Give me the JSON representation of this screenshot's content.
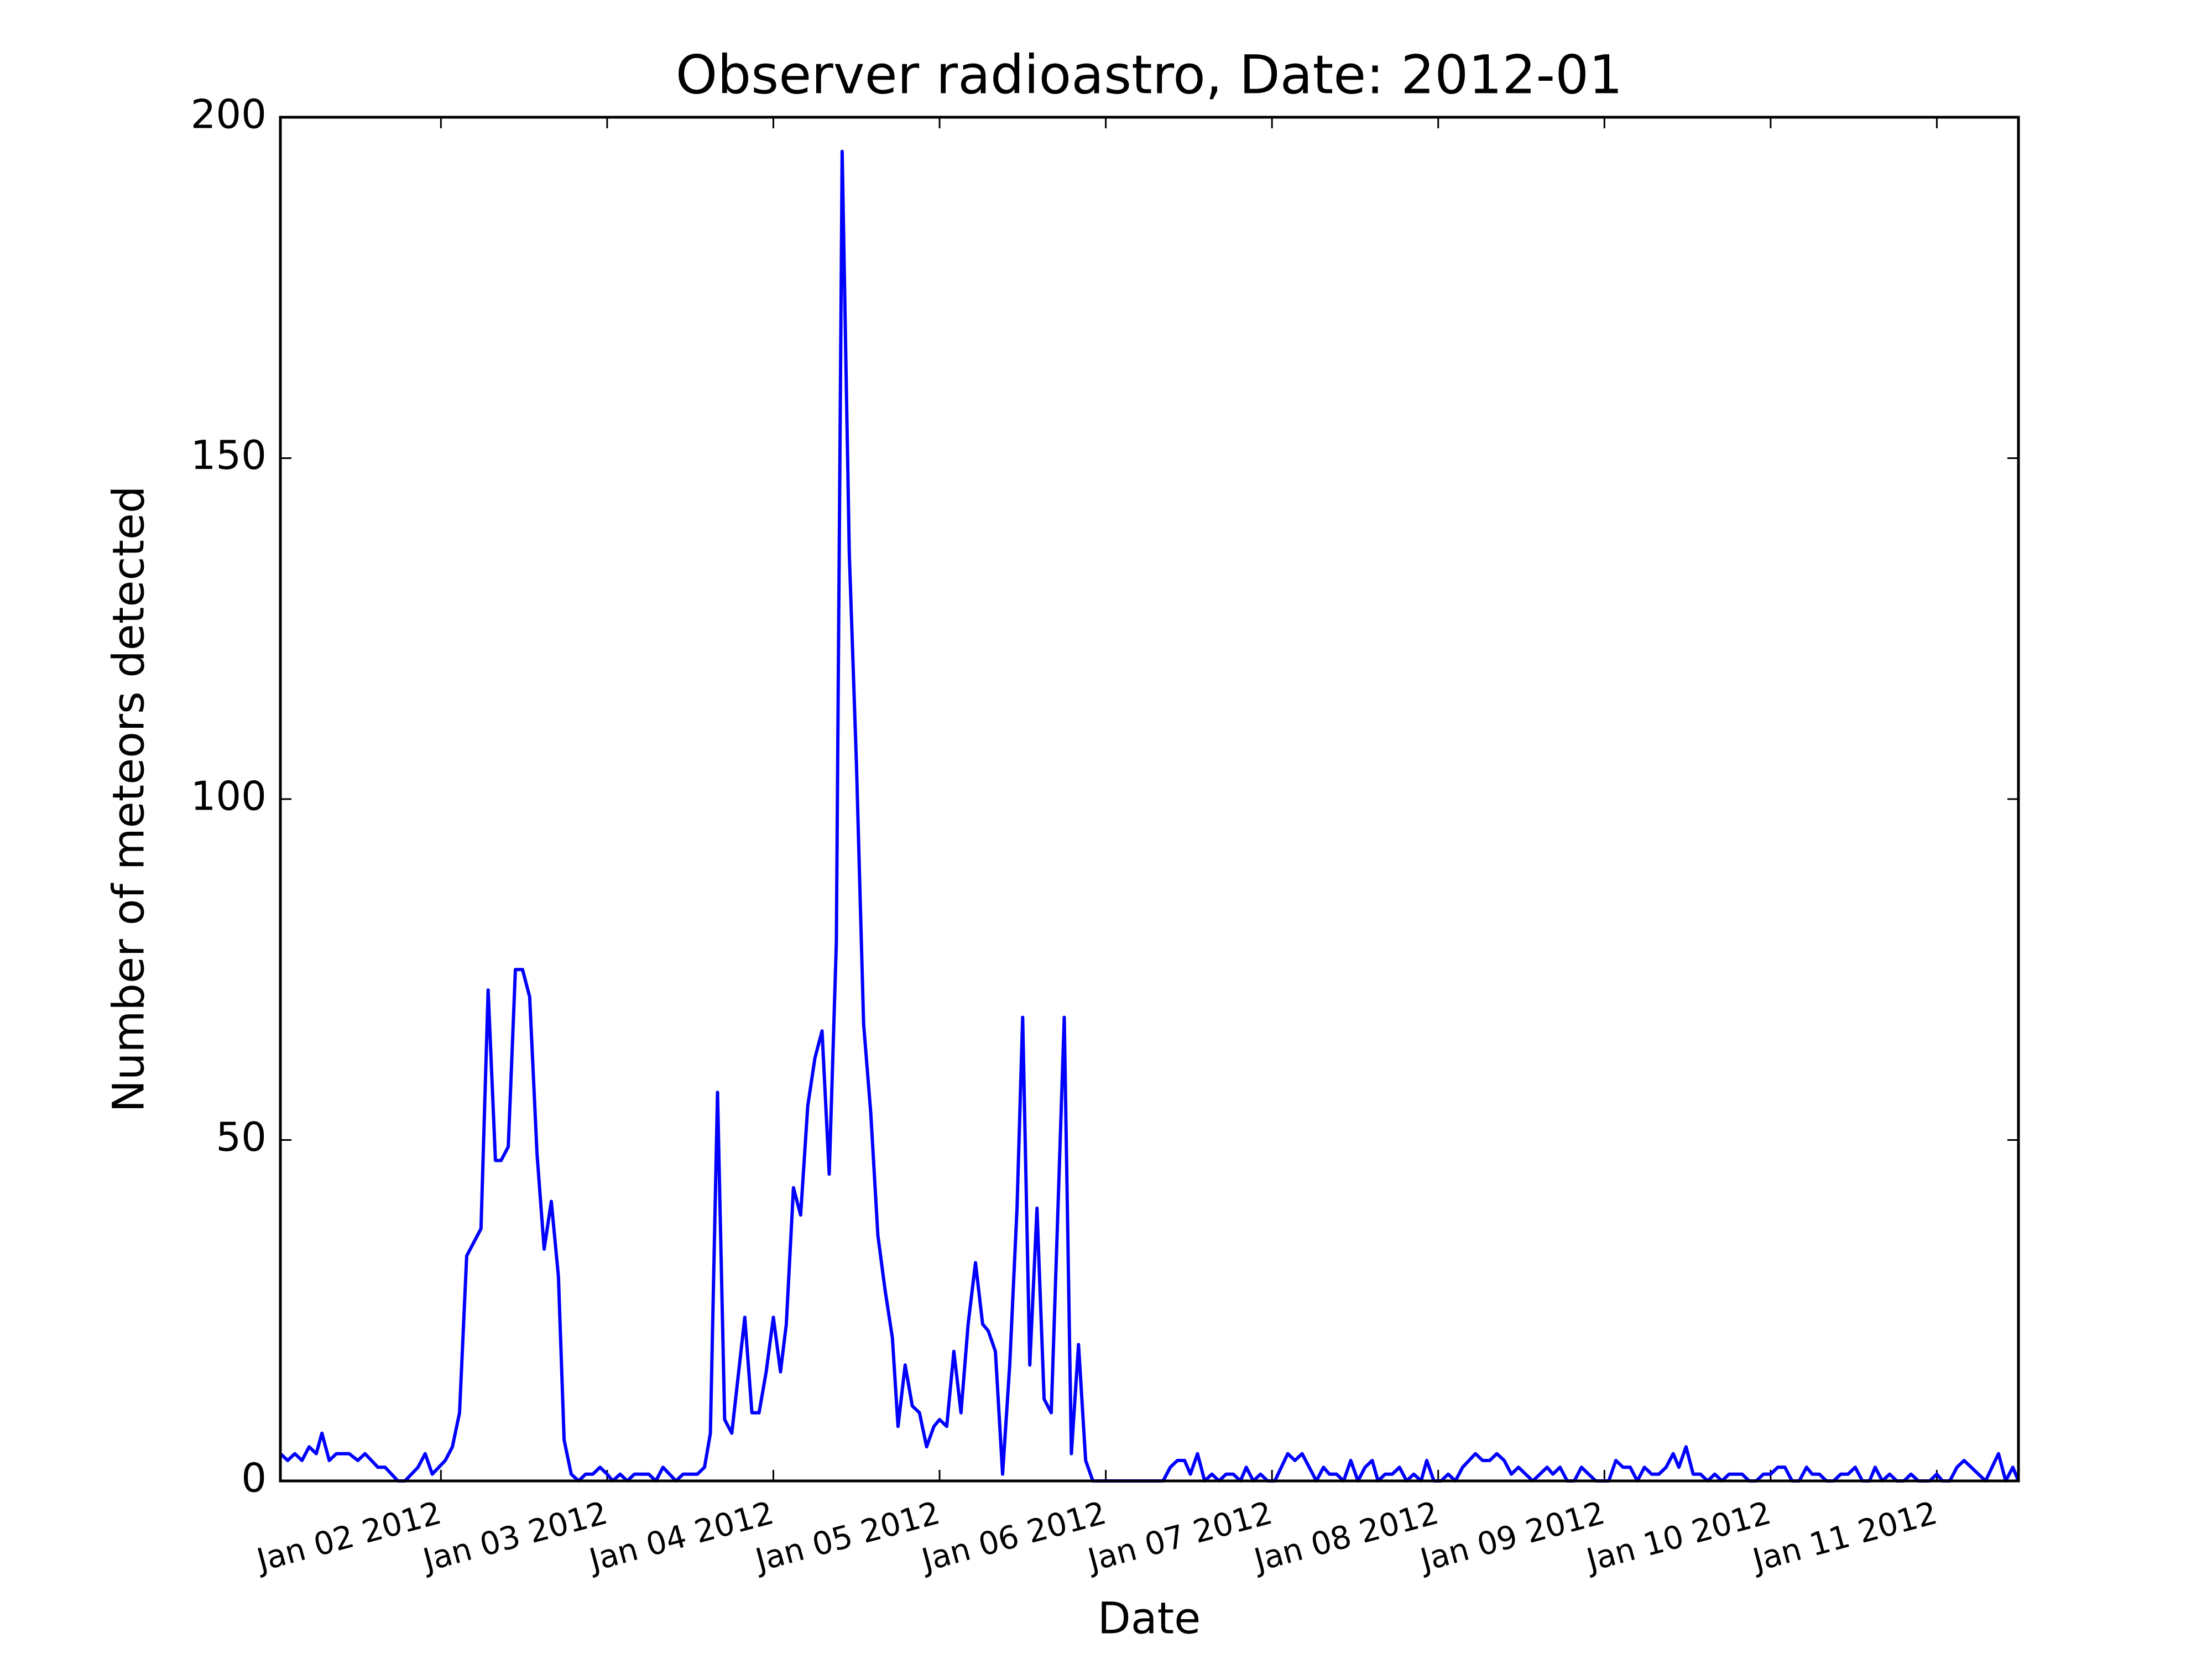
{
  "chart_data": {
    "type": "line",
    "title": "Observer radioastro, Date: 2012-01",
    "xlabel": "Date",
    "ylabel": "Number of meteors detected",
    "color": "#0000ff",
    "xlim": [
      1.034,
      11.491
    ],
    "ylim": [
      0,
      200
    ],
    "yticks": [
      0,
      50,
      100,
      150,
      200
    ],
    "xticks": [
      {
        "value": 2,
        "label": "Jan 02 2012"
      },
      {
        "value": 3,
        "label": "Jan 03 2012"
      },
      {
        "value": 4,
        "label": "Jan 04 2012"
      },
      {
        "value": 5,
        "label": "Jan 05 2012"
      },
      {
        "value": 6,
        "label": "Jan 06 2012"
      },
      {
        "value": 7,
        "label": "Jan 07 2012"
      },
      {
        "value": 8,
        "label": "Jan 08 2012"
      },
      {
        "value": 9,
        "label": "Jan 09 2012"
      },
      {
        "value": 10,
        "label": "Jan 10 2012"
      },
      {
        "value": 11,
        "label": "Jan 11 2012"
      }
    ],
    "x": [
      1.034,
      1.078,
      1.121,
      1.164,
      1.207,
      1.25,
      1.284,
      1.328,
      1.371,
      1.448,
      1.5,
      1.543,
      1.621,
      1.664,
      1.741,
      1.784,
      1.862,
      1.905,
      1.948,
      2.026,
      2.069,
      2.112,
      2.155,
      2.241,
      2.284,
      2.328,
      2.362,
      2.405,
      2.448,
      2.491,
      2.534,
      2.578,
      2.621,
      2.664,
      2.707,
      2.741,
      2.784,
      2.828,
      2.871,
      2.914,
      2.957,
      3.0,
      3.034,
      3.078,
      3.121,
      3.164,
      3.25,
      3.293,
      3.336,
      3.414,
      3.457,
      3.543,
      3.586,
      3.621,
      3.664,
      3.707,
      3.75,
      3.828,
      3.871,
      3.914,
      3.957,
      4.0,
      4.043,
      4.078,
      4.121,
      4.164,
      4.207,
      4.25,
      4.293,
      4.336,
      4.379,
      4.414,
      4.457,
      4.5,
      4.543,
      4.586,
      4.629,
      4.672,
      4.716,
      4.75,
      4.793,
      4.836,
      4.879,
      4.922,
      4.966,
      5.0,
      5.043,
      5.086,
      5.129,
      5.172,
      5.216,
      5.259,
      5.293,
      5.336,
      5.379,
      5.422,
      5.466,
      5.5,
      5.543,
      5.586,
      5.629,
      5.672,
      5.75,
      5.793,
      5.836,
      5.879,
      5.922,
      6.0,
      6.345,
      6.388,
      6.431,
      6.474,
      6.509,
      6.552,
      6.595,
      6.638,
      6.681,
      6.724,
      6.767,
      6.81,
      6.845,
      6.888,
      6.931,
      6.974,
      7.017,
      7.095,
      7.138,
      7.181,
      7.224,
      7.267,
      7.31,
      7.345,
      7.388,
      7.431,
      7.474,
      7.517,
      7.56,
      7.603,
      7.638,
      7.681,
      7.724,
      7.767,
      7.81,
      7.853,
      7.897,
      7.931,
      7.974,
      8.017,
      8.06,
      8.103,
      8.147,
      8.224,
      8.267,
      8.31,
      8.353,
      8.397,
      8.44,
      8.483,
      8.526,
      8.569,
      8.612,
      8.655,
      8.69,
      8.733,
      8.776,
      8.819,
      8.862,
      8.905,
      8.948,
      9.026,
      9.069,
      9.112,
      9.155,
      9.198,
      9.241,
      9.284,
      9.328,
      9.371,
      9.414,
      9.448,
      9.491,
      9.534,
      9.578,
      9.621,
      9.664,
      9.707,
      9.75,
      9.828,
      9.871,
      9.914,
      9.957,
      10.0,
      10.043,
      10.086,
      10.129,
      10.172,
      10.216,
      10.25,
      10.293,
      10.336,
      10.379,
      10.422,
      10.466,
      10.509,
      10.552,
      10.595,
      10.629,
      10.672,
      10.716,
      10.759,
      10.802,
      10.845,
      10.888,
      10.957,
      11.0,
      11.034,
      11.078,
      11.121,
      11.164,
      11.207,
      11.293,
      11.371,
      11.414,
      11.457,
      11.491
    ],
    "values": [
      4,
      3,
      4,
      3,
      5,
      4,
      7,
      3,
      4,
      4,
      3,
      4,
      2,
      2,
      0,
      0,
      2,
      4,
      1,
      3,
      5,
      10,
      33,
      37,
      72,
      47,
      47,
      49,
      75,
      75,
      71,
      48,
      34,
      41,
      30,
      6,
      1,
      0,
      1,
      1,
      2,
      1,
      0,
      1,
      0,
      1,
      1,
      0,
      2,
      0,
      1,
      1,
      2,
      7,
      57,
      9,
      7,
      24,
      10,
      10,
      16,
      24,
      16,
      23,
      43,
      39,
      55,
      62,
      66,
      45,
      79,
      195,
      136,
      105,
      67,
      54,
      36,
      28,
      21,
      8,
      17,
      11,
      10,
      5,
      8,
      9,
      8,
      19,
      10,
      23,
      32,
      23,
      22,
      19,
      1,
      17,
      40,
      68,
      17,
      40,
      12,
      10,
      68,
      4,
      20,
      3,
      0,
      0,
      0,
      2,
      3,
      3,
      1,
      4,
      0,
      1,
      0,
      1,
      1,
      0,
      2,
      0,
      1,
      0,
      0,
      4,
      3,
      4,
      2,
      0,
      2,
      1,
      1,
      0,
      3,
      0,
      2,
      3,
      0,
      1,
      1,
      2,
      0,
      1,
      0,
      3,
      0,
      0,
      1,
      0,
      2,
      4,
      3,
      3,
      4,
      3,
      1,
      2,
      1,
      0,
      1,
      2,
      1,
      2,
      0,
      0,
      2,
      1,
      0,
      0,
      3,
      2,
      2,
      0,
      2,
      1,
      1,
      2,
      4,
      2,
      5,
      1,
      1,
      0,
      1,
      0,
      1,
      1,
      0,
      0,
      1,
      1,
      2,
      2,
      0,
      0,
      2,
      1,
      1,
      0,
      0,
      1,
      1,
      2,
      0,
      0,
      2,
      0,
      1,
      0,
      0,
      1,
      0,
      0,
      1,
      0,
      0,
      2,
      3,
      2,
      0,
      4,
      0,
      2,
      0
    ]
  }
}
